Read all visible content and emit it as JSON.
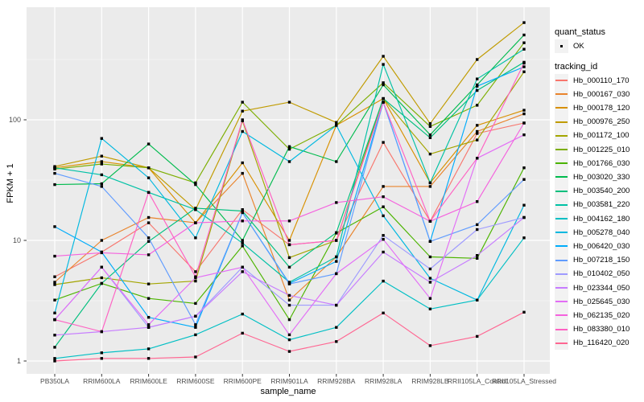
{
  "figure": {
    "y_axis_title": "FPKM + 1",
    "x_axis_title": "sample_name",
    "y_tick_labels": [
      "1",
      "10",
      "100"
    ],
    "legend": {
      "quant_status_title": "quant_status",
      "quant_status_value": "OK",
      "tracking_id_title": "tracking_id"
    }
  },
  "chart_data": {
    "type": "line",
    "title": "",
    "xlabel": "sample_name",
    "ylabel": "FPKM + 1",
    "y_scale": "log10",
    "y_ticks": [
      1,
      10,
      100
    ],
    "y_minor_ticks": [
      3.162,
      31.62,
      316.2
    ],
    "ylim": [
      0.78,
      860
    ],
    "grid": true,
    "legend_position": "right",
    "marker": "black-square",
    "panel_bg": "#EBEBEB",
    "grid_color": "#FFFFFF",
    "marker_color": "#000000",
    "x_categories": [
      "PB350LA",
      "RRIM600LA",
      "RRIM600LE",
      "RRIM600SE",
      "RRIM600PE",
      "RRIM901LA",
      "RRIM928BA",
      "RRIM928LA",
      "RRIM928LB",
      "RRII105LA_Control",
      "RRII105LA_Stressed"
    ],
    "series": [
      {
        "name": "Hb_000110_170",
        "color": "#F8766D",
        "values": [
          5.0,
          8.0,
          14.0,
          5.5,
          18.0,
          9.2,
          10.0,
          65.0,
          14.4,
          77.0,
          94.0
        ]
      },
      {
        "name": "Hb_000167_030",
        "color": "#E9842C",
        "values": [
          4.5,
          10.0,
          15.5,
          14.0,
          36.0,
          3.2,
          7.3,
          28.0,
          28.0,
          80.0,
          112.0
        ]
      },
      {
        "name": "Hb_000178_120",
        "color": "#D89000",
        "values": [
          40.0,
          45.0,
          40.0,
          14.0,
          44.0,
          10.0,
          90.0,
          150.0,
          30.0,
          90.0,
          120.0
        ]
      },
      {
        "name": "Hb_000976_250",
        "color": "#C09B00",
        "values": [
          41.0,
          50.0,
          40.0,
          18.0,
          118.0,
          140.0,
          95.0,
          336.0,
          93.0,
          316.0,
          640.0
        ]
      },
      {
        "name": "Hb_001172_100",
        "color": "#A3A500",
        "values": [
          4.3,
          4.9,
          4.35,
          4.6,
          98.0,
          7.2,
          10.0,
          150.0,
          52.0,
          68.0,
          250.0
        ]
      },
      {
        "name": "Hb_001225_010",
        "color": "#7CAE00",
        "values": [
          39.0,
          43.0,
          40.0,
          30.0,
          140.0,
          57.0,
          90.0,
          203.0,
          88.0,
          132.0,
          435.0
        ]
      },
      {
        "name": "Hb_001766_030",
        "color": "#4CB400",
        "values": [
          3.2,
          4.4,
          3.3,
          3.0,
          9.0,
          2.2,
          11.5,
          19.0,
          7.3,
          7.1,
          40.0
        ]
      },
      {
        "name": "Hb_003020_330",
        "color": "#00BB4E",
        "values": [
          29.0,
          29.5,
          63.0,
          29.0,
          10.0,
          60.0,
          45.0,
          195.0,
          75.0,
          195.0,
          505.0
        ]
      },
      {
        "name": "Hb_003540_200",
        "color": "#00BF7D",
        "values": [
          1.3,
          4.4,
          9.8,
          18.5,
          17.5,
          6.0,
          11.6,
          150.0,
          71.0,
          175.0,
          300.0
        ]
      },
      {
        "name": "Hb_003581_220",
        "color": "#00C1A5",
        "values": [
          40.0,
          35.0,
          25.0,
          18.0,
          9.5,
          4.5,
          7.3,
          288.0,
          30.0,
          218.0,
          385.0
        ]
      },
      {
        "name": "Hb_004162_180",
        "color": "#00BFC4",
        "values": [
          1.05,
          1.17,
          1.26,
          1.65,
          2.45,
          1.5,
          1.9,
          4.6,
          2.7,
          3.2,
          10.5
        ]
      },
      {
        "name": "Hb_005278_040",
        "color": "#00B8E0",
        "values": [
          2.5,
          70.0,
          33.0,
          10.5,
          80.0,
          45.0,
          90.0,
          16.0,
          4.85,
          3.2,
          19.6
        ]
      },
      {
        "name": "Hb_006420_030",
        "color": "#00ACFB",
        "values": [
          13.0,
          8.0,
          2.3,
          1.9,
          17.0,
          4.4,
          6.7,
          140.0,
          9.8,
          190.0,
          275.0
        ]
      },
      {
        "name": "Hb_007218_150",
        "color": "#619CFF",
        "values": [
          36.0,
          28.0,
          10.5,
          2.0,
          17.0,
          4.35,
          5.3,
          140.0,
          9.8,
          13.5,
          32.0
        ]
      },
      {
        "name": "Hb_010402_050",
        "color": "#9F9BFF",
        "values": [
          2.2,
          6.0,
          1.9,
          2.35,
          6.0,
          2.9,
          2.9,
          11.0,
          5.8,
          12.3,
          15.5
        ]
      },
      {
        "name": "Hb_023344_050",
        "color": "#C77CFF",
        "values": [
          1.64,
          1.75,
          1.9,
          2.35,
          5.5,
          3.5,
          2.9,
          8.0,
          4.5,
          7.5,
          15.5
        ]
      },
      {
        "name": "Hb_025645_030",
        "color": "#E36EF6",
        "values": [
          2.2,
          6.0,
          2.0,
          4.9,
          6.0,
          1.65,
          5.3,
          10.2,
          3.3,
          48.0,
          75.0
        ]
      },
      {
        "name": "Hb_062135_020",
        "color": "#F562DE",
        "values": [
          7.4,
          7.9,
          7.6,
          14.0,
          14.5,
          14.5,
          20.6,
          23.0,
          14.4,
          21.0,
          94.0
        ]
      },
      {
        "name": "Hb_083380_010",
        "color": "#FF61C3",
        "values": [
          2.2,
          1.75,
          25.0,
          5.0,
          100.0,
          9.2,
          10.0,
          140.0,
          14.4,
          48.0,
          295.0
        ]
      },
      {
        "name": "Hb_116420_020",
        "color": "#FF6692",
        "values": [
          1.0,
          1.05,
          1.05,
          1.08,
          1.7,
          1.2,
          1.45,
          2.5,
          1.34,
          1.6,
          2.54
        ]
      }
    ]
  }
}
